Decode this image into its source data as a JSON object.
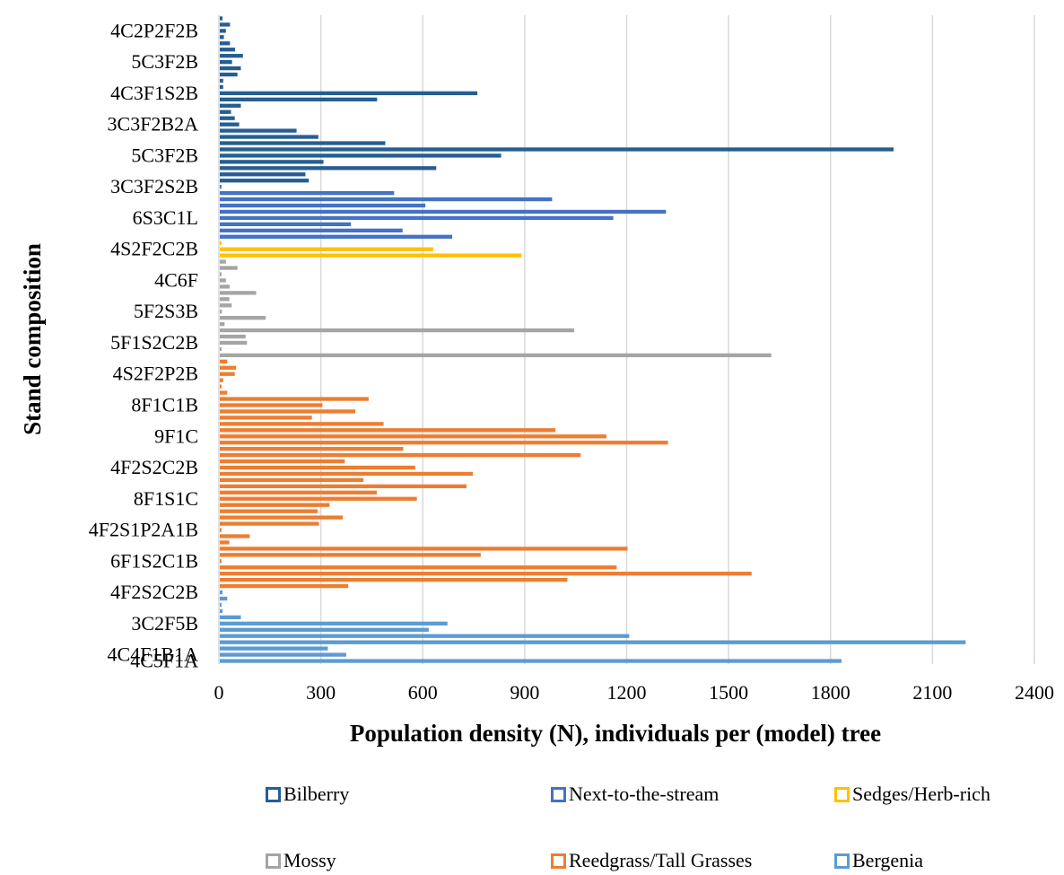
{
  "chart_data": {
    "type": "bar",
    "orientation": "horizontal",
    "xlabel": "Population density (N), individuals per (model) tree",
    "ylabel": "Stand composition",
    "xlim": [
      0,
      2400
    ],
    "xticks": [
      0,
      300,
      600,
      900,
      1200,
      1500,
      1800,
      2100,
      2400
    ],
    "grid": "vertical",
    "legend_position": "bottom",
    "series": [
      {
        "name": "Bilberry",
        "color": "#255e91"
      },
      {
        "name": "Next-to-the-stream",
        "color": "#4472c4"
      },
      {
        "name": "Sedges/Herb-rich",
        "color": "#ffc000"
      },
      {
        "name": "Mossy",
        "color": "#a5a5a5"
      },
      {
        "name": "Reedgrass/Tall Grasses",
        "color": "#ed7d31"
      },
      {
        "name": "Bergenia",
        "color": "#5b9bd5"
      }
    ],
    "category_labels": [
      "4C2P2F2B",
      "5C3F2B",
      "4C3F1S2B",
      "3C3F2B2A",
      "5C3F2B",
      "3C3F2S2B",
      "6S3C1L",
      "4S2F2C2B",
      "4C6F",
      "5F2S3B",
      "5F1S2C2B",
      "4S2F2P2B",
      "8F1C1B",
      "9F1C",
      "4F2S2C2B",
      "8F1S1C",
      "4F2S1P2A1B",
      "6F1S2C1B",
      "4F2S2C2B",
      "3C2F5B",
      "4C4F1B1A",
      "4C5F1A"
    ],
    "bars": [
      {
        "series": 0,
        "value": 8
      },
      {
        "series": 0,
        "value": 30
      },
      {
        "series": 0,
        "value": 18
      },
      {
        "series": 0,
        "value": 12
      },
      {
        "series": 0,
        "value": 30
      },
      {
        "series": 0,
        "value": 45
      },
      {
        "series": 0,
        "value": 68
      },
      {
        "series": 0,
        "value": 36
      },
      {
        "series": 0,
        "value": 62
      },
      {
        "series": 0,
        "value": 52
      },
      {
        "series": 0,
        "value": 10
      },
      {
        "series": 0,
        "value": 10
      },
      {
        "series": 0,
        "value": 758
      },
      {
        "series": 0,
        "value": 463
      },
      {
        "series": 0,
        "value": 62
      },
      {
        "series": 0,
        "value": 33
      },
      {
        "series": 0,
        "value": 44
      },
      {
        "series": 0,
        "value": 57
      },
      {
        "series": 0,
        "value": 226
      },
      {
        "series": 0,
        "value": 290
      },
      {
        "series": 0,
        "value": 487
      },
      {
        "series": 0,
        "value": 1983
      },
      {
        "series": 0,
        "value": 828
      },
      {
        "series": 0,
        "value": 305
      },
      {
        "series": 0,
        "value": 637
      },
      {
        "series": 0,
        "value": 252
      },
      {
        "series": 0,
        "value": 262
      },
      {
        "series": 1,
        "value": 5
      },
      {
        "series": 1,
        "value": 513
      },
      {
        "series": 1,
        "value": 978
      },
      {
        "series": 1,
        "value": 605
      },
      {
        "series": 1,
        "value": 1313
      },
      {
        "series": 1,
        "value": 1158
      },
      {
        "series": 1,
        "value": 386
      },
      {
        "series": 1,
        "value": 538
      },
      {
        "series": 1,
        "value": 684
      },
      {
        "series": 2,
        "value": 5
      },
      {
        "series": 2,
        "value": 628
      },
      {
        "series": 2,
        "value": 888
      },
      {
        "series": 3,
        "value": 18
      },
      {
        "series": 3,
        "value": 52
      },
      {
        "series": 3,
        "value": 5
      },
      {
        "series": 3,
        "value": 18
      },
      {
        "series": 3,
        "value": 29
      },
      {
        "series": 3,
        "value": 107
      },
      {
        "series": 3,
        "value": 28
      },
      {
        "series": 3,
        "value": 35
      },
      {
        "series": 3,
        "value": 6
      },
      {
        "series": 3,
        "value": 135
      },
      {
        "series": 3,
        "value": 14
      },
      {
        "series": 3,
        "value": 1043
      },
      {
        "series": 3,
        "value": 76
      },
      {
        "series": 3,
        "value": 80
      },
      {
        "series": 3,
        "value": 5
      },
      {
        "series": 3,
        "value": 1623
      },
      {
        "series": 4,
        "value": 22
      },
      {
        "series": 4,
        "value": 48
      },
      {
        "series": 4,
        "value": 44
      },
      {
        "series": 4,
        "value": 10
      },
      {
        "series": 4,
        "value": 5
      },
      {
        "series": 4,
        "value": 22
      },
      {
        "series": 4,
        "value": 438
      },
      {
        "series": 4,
        "value": 302
      },
      {
        "series": 4,
        "value": 399
      },
      {
        "series": 4,
        "value": 271
      },
      {
        "series": 4,
        "value": 482
      },
      {
        "series": 4,
        "value": 988
      },
      {
        "series": 4,
        "value": 1138
      },
      {
        "series": 4,
        "value": 1319
      },
      {
        "series": 4,
        "value": 540
      },
      {
        "series": 4,
        "value": 1062
      },
      {
        "series": 4,
        "value": 368
      },
      {
        "series": 4,
        "value": 575
      },
      {
        "series": 4,
        "value": 745
      },
      {
        "series": 4,
        "value": 423
      },
      {
        "series": 4,
        "value": 726
      },
      {
        "series": 4,
        "value": 462
      },
      {
        "series": 4,
        "value": 580
      },
      {
        "series": 4,
        "value": 323
      },
      {
        "series": 4,
        "value": 288
      },
      {
        "series": 4,
        "value": 362
      },
      {
        "series": 4,
        "value": 292
      },
      {
        "series": 4,
        "value": 5
      },
      {
        "series": 4,
        "value": 88
      },
      {
        "series": 4,
        "value": 28
      },
      {
        "series": 4,
        "value": 1200
      },
      {
        "series": 4,
        "value": 768
      },
      {
        "series": 4,
        "value": 5
      },
      {
        "series": 4,
        "value": 1168
      },
      {
        "series": 4,
        "value": 1565
      },
      {
        "series": 4,
        "value": 1023
      },
      {
        "series": 4,
        "value": 378
      },
      {
        "series": 5,
        "value": 8
      },
      {
        "series": 5,
        "value": 22
      },
      {
        "series": 5,
        "value": 5
      },
      {
        "series": 5,
        "value": 8
      },
      {
        "series": 5,
        "value": 62
      },
      {
        "series": 5,
        "value": 670
      },
      {
        "series": 5,
        "value": 615
      },
      {
        "series": 5,
        "value": 1205
      },
      {
        "series": 5,
        "value": 2195
      },
      {
        "series": 5,
        "value": 318
      },
      {
        "series": 5,
        "value": 372
      },
      {
        "series": 5,
        "value": 1830
      }
    ]
  }
}
